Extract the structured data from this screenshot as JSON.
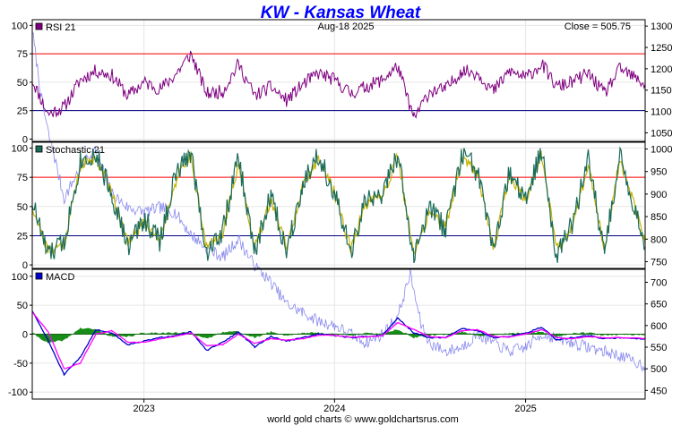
{
  "header": {
    "title": "KW  -  Kansas Wheat",
    "date": "Aug-18  2025",
    "close": "Close = 505.75"
  },
  "footer": "world gold charts © www.goldchartsrus.com",
  "colors": {
    "rsi": "#800080",
    "stochastic_fast": "#1a6b5a",
    "stochastic_slow": "#c8b400",
    "macd": "#0000cc",
    "signal": "#ff00ff",
    "histogram": "#008000",
    "price": "#8888ee",
    "ref_high": "#ff0000",
    "ref_low": "#000080",
    "grid": "#e6e6e6"
  },
  "chart_data": [
    {
      "type": "line",
      "panel": "rsi",
      "legend": "RSI 21",
      "ylim": [
        -2,
        105
      ],
      "yticks": [
        0,
        25,
        50,
        75,
        100
      ],
      "reference_lines": [
        75,
        25
      ],
      "series": [
        {
          "key": "rsi",
          "x": [
            "2022-06-01",
            "2022-07-01",
            "2022-08-01",
            "2022-09-01",
            "2022-10-01",
            "2022-11-01",
            "2022-12-01",
            "2023-01-01",
            "2023-02-01",
            "2023-03-01",
            "2023-04-01",
            "2023-05-01",
            "2023-06-01",
            "2023-07-01",
            "2023-08-01",
            "2023-09-01",
            "2023-10-01",
            "2023-11-01",
            "2023-12-01",
            "2024-01-01",
            "2024-02-01",
            "2024-03-01",
            "2024-04-01",
            "2024-05-01",
            "2024-06-01",
            "2024-07-01",
            "2024-08-01",
            "2024-09-01",
            "2024-10-01",
            "2024-11-01",
            "2024-12-01",
            "2025-01-01",
            "2025-02-01",
            "2025-03-01",
            "2025-04-01",
            "2025-05-01",
            "2025-06-01",
            "2025-07-01",
            "2025-08-18"
          ],
          "values": [
            52,
            22,
            28,
            52,
            60,
            56,
            38,
            50,
            44,
            56,
            75,
            40,
            42,
            66,
            38,
            46,
            34,
            48,
            58,
            52,
            40,
            46,
            52,
            64,
            18,
            42,
            44,
            60,
            58,
            42,
            60,
            54,
            66,
            46,
            50,
            58,
            40,
            62,
            48
          ]
        }
      ]
    },
    {
      "type": "line",
      "panel": "stochastic",
      "legend": "Stochastic 21",
      "ylim": [
        -3,
        105
      ],
      "yticks": [
        0,
        25,
        50,
        75,
        100
      ],
      "reference_lines": [
        75,
        25
      ],
      "series": [
        {
          "key": "fast",
          "x": [
            "2022-06-01",
            "2022-07-01",
            "2022-08-01",
            "2022-09-01",
            "2022-10-01",
            "2022-11-01",
            "2022-12-01",
            "2023-01-01",
            "2023-02-01",
            "2023-03-01",
            "2023-04-01",
            "2023-05-01",
            "2023-06-01",
            "2023-07-01",
            "2023-08-01",
            "2023-09-01",
            "2023-10-01",
            "2023-11-01",
            "2023-12-01",
            "2024-01-01",
            "2024-02-01",
            "2024-03-01",
            "2024-04-01",
            "2024-05-01",
            "2024-06-01",
            "2024-07-01",
            "2024-08-01",
            "2024-09-01",
            "2024-10-01",
            "2024-11-01",
            "2024-12-01",
            "2025-01-01",
            "2025-02-01",
            "2025-03-01",
            "2025-04-01",
            "2025-05-01",
            "2025-06-01",
            "2025-07-01",
            "2025-08-18"
          ],
          "values": [
            55,
            8,
            20,
            90,
            95,
            60,
            15,
            40,
            20,
            75,
            97,
            10,
            30,
            92,
            10,
            60,
            12,
            70,
            95,
            60,
            10,
            55,
            60,
            95,
            5,
            50,
            30,
            95,
            80,
            10,
            80,
            55,
            98,
            10,
            35,
            90,
            10,
            95,
            15
          ]
        },
        {
          "key": "slow",
          "x": [
            "2022-06-01",
            "2022-07-01",
            "2022-08-01",
            "2022-09-01",
            "2022-10-01",
            "2022-11-01",
            "2022-12-01",
            "2023-01-01",
            "2023-02-01",
            "2023-03-01",
            "2023-04-01",
            "2023-05-01",
            "2023-06-01",
            "2023-07-01",
            "2023-08-01",
            "2023-09-01",
            "2023-10-01",
            "2023-11-01",
            "2023-12-01",
            "2024-01-01",
            "2024-02-01",
            "2024-03-01",
            "2024-04-01",
            "2024-05-01",
            "2024-06-01",
            "2024-07-01",
            "2024-08-01",
            "2024-09-01",
            "2024-10-01",
            "2024-11-01",
            "2024-12-01",
            "2025-01-01",
            "2025-02-01",
            "2025-03-01",
            "2025-04-01",
            "2025-05-01",
            "2025-06-01",
            "2025-07-01",
            "2025-08-18"
          ],
          "values": [
            50,
            12,
            18,
            85,
            92,
            62,
            18,
            38,
            22,
            70,
            94,
            14,
            28,
            88,
            14,
            56,
            15,
            66,
            92,
            62,
            14,
            52,
            58,
            92,
            8,
            46,
            32,
            92,
            80,
            14,
            76,
            56,
            94,
            14,
            33,
            86,
            14,
            92,
            18
          ]
        }
      ]
    },
    {
      "type": "line",
      "panel": "macd",
      "legend": "MACD",
      "ylim": [
        -112,
        112
      ],
      "yticks": [
        100,
        50,
        0,
        -50,
        -100
      ],
      "series": [
        {
          "key": "macd",
          "x": [
            "2022-06-01",
            "2022-07-01",
            "2022-08-01",
            "2022-09-01",
            "2022-10-01",
            "2022-11-01",
            "2022-12-01",
            "2023-01-01",
            "2023-02-01",
            "2023-03-01",
            "2023-04-01",
            "2023-05-01",
            "2023-06-01",
            "2023-07-01",
            "2023-08-01",
            "2023-09-01",
            "2023-10-01",
            "2023-11-01",
            "2023-12-01",
            "2024-01-01",
            "2024-02-01",
            "2024-03-01",
            "2024-04-01",
            "2024-05-01",
            "2024-06-01",
            "2024-07-01",
            "2024-08-01",
            "2024-09-01",
            "2024-10-01",
            "2024-11-01",
            "2024-12-01",
            "2025-01-01",
            "2025-02-01",
            "2025-03-01",
            "2025-04-01",
            "2025-05-01",
            "2025-06-01",
            "2025-07-01",
            "2025-08-18"
          ],
          "values": [
            40,
            -10,
            -70,
            -40,
            8,
            2,
            -18,
            -12,
            -6,
            -2,
            4,
            -28,
            -14,
            4,
            -22,
            -4,
            -12,
            -6,
            0,
            -2,
            -6,
            -4,
            -2,
            28,
            2,
            -6,
            -6,
            10,
            6,
            -6,
            -4,
            2,
            12,
            -10,
            -6,
            -2,
            -8,
            -6,
            -8
          ]
        },
        {
          "key": "signal",
          "x": [
            "2022-06-01",
            "2022-07-01",
            "2022-08-01",
            "2022-09-01",
            "2022-10-01",
            "2022-11-01",
            "2022-12-01",
            "2023-01-01",
            "2023-02-01",
            "2023-03-01",
            "2023-04-01",
            "2023-05-01",
            "2023-06-01",
            "2023-07-01",
            "2023-08-01",
            "2023-09-01",
            "2023-10-01",
            "2023-11-01",
            "2023-12-01",
            "2024-01-01",
            "2024-02-01",
            "2024-03-01",
            "2024-04-01",
            "2024-05-01",
            "2024-06-01",
            "2024-07-01",
            "2024-08-01",
            "2024-09-01",
            "2024-10-01",
            "2024-11-01",
            "2024-12-01",
            "2025-01-01",
            "2025-02-01",
            "2025-03-01",
            "2025-04-01",
            "2025-05-01",
            "2025-06-01",
            "2025-07-01",
            "2025-08-18"
          ],
          "values": [
            38,
            5,
            -60,
            -50,
            0,
            6,
            -14,
            -14,
            -8,
            -4,
            2,
            -20,
            -18,
            0,
            -16,
            -8,
            -10,
            -8,
            -2,
            -2,
            -5,
            -5,
            -3,
            20,
            8,
            -4,
            -6,
            6,
            8,
            -4,
            -5,
            0,
            8,
            -6,
            -8,
            -4,
            -6,
            -6,
            -7
          ]
        },
        {
          "key": "histogram",
          "values": [
            2,
            -15,
            -10,
            10,
            8,
            -4,
            -4,
            2,
            2,
            2,
            2,
            -8,
            4,
            4,
            -6,
            4,
            -2,
            2,
            2,
            0,
            -1,
            1,
            1,
            8,
            -6,
            -2,
            0,
            4,
            -2,
            -2,
            1,
            2,
            4,
            -4,
            2,
            2,
            -2,
            0,
            -1
          ]
        }
      ]
    },
    {
      "type": "line",
      "panel": "price-overlay",
      "legend": "",
      "axes": [
        {
          "panel": "rsi",
          "ylim": [
            1030,
            1315
          ],
          "yticks": [
            1050,
            1100,
            1150,
            1200,
            1250,
            1300
          ]
        },
        {
          "panel": "stochastic",
          "ylim": [
            735,
            1015
          ],
          "yticks": [
            750,
            800,
            850,
            900,
            950,
            1000
          ]
        },
        {
          "panel": "macd",
          "ylim": [
            430,
            730
          ],
          "yticks": [
            450,
            500,
            550,
            600,
            650,
            700
          ]
        }
      ],
      "series": [
        {
          "key": "price",
          "x": [
            "2022-06-01",
            "2022-06-20",
            "2022-07-10",
            "2022-08-01",
            "2022-09-01",
            "2022-10-01",
            "2022-11-01",
            "2022-12-01",
            "2023-01-01",
            "2023-02-01",
            "2023-03-01",
            "2023-04-01",
            "2023-05-01",
            "2023-06-01",
            "2023-07-01",
            "2023-08-01",
            "2023-09-01",
            "2023-10-01",
            "2023-11-01",
            "2023-12-01",
            "2024-01-01",
            "2024-02-01",
            "2024-03-01",
            "2024-04-01",
            "2024-05-01",
            "2024-05-25",
            "2024-06-15",
            "2024-07-01",
            "2024-08-01",
            "2024-09-01",
            "2024-10-01",
            "2024-11-01",
            "2024-12-01",
            "2025-01-01",
            "2025-02-01",
            "2025-03-01",
            "2025-04-01",
            "2025-05-01",
            "2025-06-01",
            "2025-07-01",
            "2025-08-18"
          ],
          "values": [
            1290,
            1120,
            1000,
            890,
            960,
            1000,
            900,
            870,
            860,
            870,
            860,
            810,
            780,
            760,
            800,
            740,
            700,
            650,
            630,
            610,
            600,
            580,
            560,
            580,
            620,
            720,
            600,
            560,
            540,
            550,
            580,
            560,
            540,
            550,
            580,
            570,
            560,
            550,
            540,
            530,
            505.75
          ]
        }
      ]
    }
  ],
  "x_axis": {
    "range": [
      "2022-06-01",
      "2025-08-18"
    ],
    "ticks": [
      {
        "label": "2023",
        "date": "2023-01-01"
      },
      {
        "label": "2024",
        "date": "2024-01-01"
      },
      {
        "label": "2025",
        "date": "2025-01-01"
      }
    ]
  }
}
